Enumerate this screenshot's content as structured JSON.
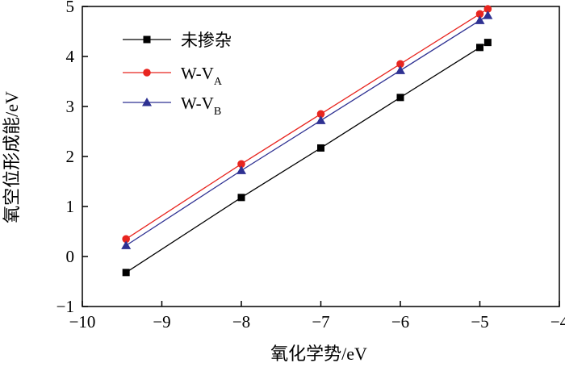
{
  "chart_data": {
    "type": "line",
    "xlabel": "氧化学势/eV",
    "ylabel": "氧空位形成能/eV",
    "xlim": [
      -10,
      -4
    ],
    "ylim": [
      -1,
      5
    ],
    "xticks": [
      -10,
      -9,
      -8,
      -7,
      -6,
      -5,
      -4
    ],
    "yticks": [
      -1,
      0,
      1,
      2,
      3,
      4,
      5
    ],
    "xtick_labels": [
      "−10",
      "−9",
      "−8",
      "−7",
      "−6",
      "−5",
      "−4"
    ],
    "ytick_labels": [
      "−1",
      "0",
      "1",
      "2",
      "3",
      "4",
      "5"
    ],
    "legend_position": "top-left",
    "grid": false,
    "series": [
      {
        "name": "未掺杂",
        "name_sub": "",
        "color": "#000000",
        "marker": "square",
        "x": [
          -9.45,
          -8.0,
          -7.0,
          -6.0,
          -5.0,
          -4.9
        ],
        "y": [
          -0.32,
          1.18,
          2.17,
          3.18,
          4.18,
          4.28
        ]
      },
      {
        "name": "W-V",
        "name_sub": "A",
        "color": "#e8251f",
        "marker": "circle",
        "x": [
          -9.45,
          -8.0,
          -7.0,
          -6.0,
          -5.0,
          -4.9
        ],
        "y": [
          0.35,
          1.85,
          2.85,
          3.85,
          4.85,
          4.95
        ]
      },
      {
        "name": "W-V",
        "name_sub": "B",
        "color": "#2e3192",
        "marker": "triangle",
        "x": [
          -9.45,
          -8.0,
          -7.0,
          -6.0,
          -5.0,
          -4.9
        ],
        "y": [
          0.22,
          1.72,
          2.72,
          3.72,
          4.72,
          4.82
        ]
      }
    ]
  }
}
